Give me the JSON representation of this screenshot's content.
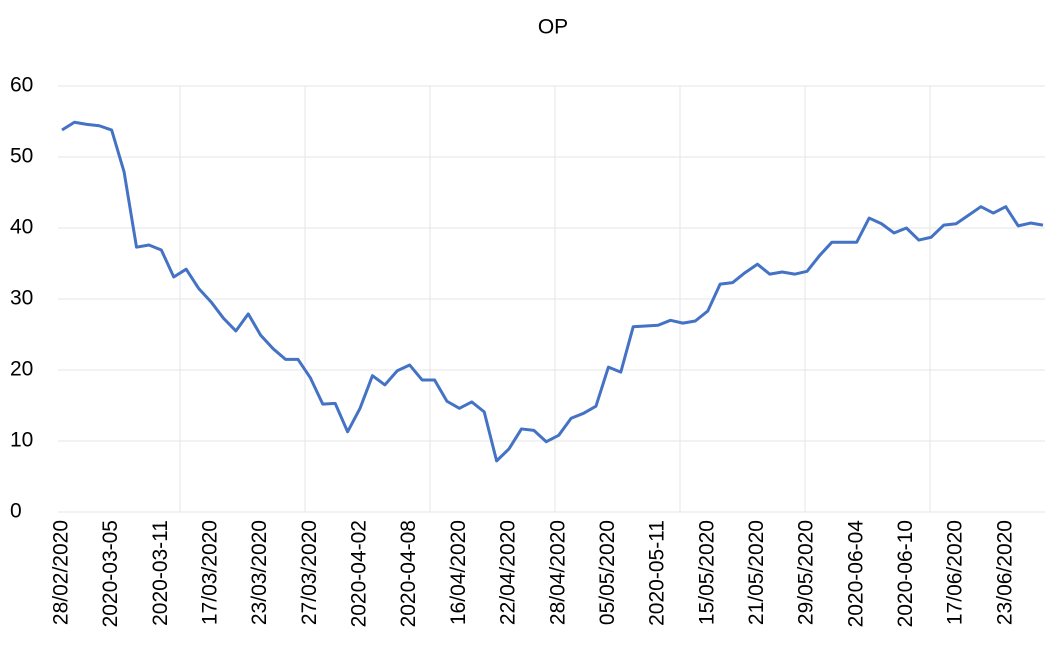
{
  "chart_data": {
    "type": "line",
    "title": "OP",
    "categories": [
      "28/02/2020",
      null,
      null,
      null,
      "2020-03-05",
      null,
      null,
      null,
      "2020-03-11",
      null,
      null,
      null,
      "17/03/2020",
      null,
      null,
      null,
      "23/03/2020",
      null,
      null,
      null,
      "27/03/2020",
      null,
      null,
      null,
      "2020-04-02",
      null,
      null,
      null,
      "2020-04-08",
      null,
      null,
      null,
      "16/04/2020",
      null,
      null,
      null,
      "22/04/2020",
      null,
      null,
      null,
      "28/04/2020",
      null,
      null,
      null,
      "05/05/2020",
      null,
      null,
      null,
      "2020-05-11",
      null,
      null,
      null,
      "15/05/2020",
      null,
      null,
      null,
      "21/05/2020",
      null,
      null,
      null,
      "29/05/2020",
      null,
      null,
      null,
      "2020-06-04",
      null,
      null,
      null,
      "2020-06-10",
      null,
      null,
      null,
      "17/06/2020",
      null,
      null,
      null,
      "23/06/2020",
      null,
      null,
      null
    ],
    "series": [
      {
        "name": "OP",
        "color": "#4472c4",
        "values": [
          53.8,
          54.9,
          54.6,
          54.4,
          53.8,
          47.9,
          37.3,
          37.6,
          36.9,
          33.1,
          34.2,
          31.5,
          29.6,
          27.3,
          25.5,
          27.9,
          24.9,
          23.0,
          21.5,
          21.5,
          18.9,
          15.2,
          15.3,
          11.3,
          14.6,
          19.2,
          17.9,
          19.9,
          20.7,
          18.6,
          18.6,
          15.6,
          14.6,
          15.5,
          14.1,
          7.2,
          8.9,
          11.7,
          11.5,
          9.9,
          10.8,
          13.2,
          13.9,
          14.9,
          20.4,
          19.7,
          26.1,
          26.2,
          26.3,
          27.0,
          26.6,
          26.9,
          28.3,
          32.1,
          32.3,
          33.7,
          34.9,
          33.5,
          33.8,
          33.5,
          33.9,
          36.1,
          38.0,
          38.0,
          38.0,
          41.4,
          40.6,
          39.3,
          40.0,
          38.3,
          38.7,
          40.4,
          40.6,
          41.8,
          43.0,
          42.1,
          43.0,
          40.3,
          40.7,
          40.4
        ]
      }
    ],
    "ylim": [
      0,
      60
    ],
    "yticks": [
      0,
      10,
      20,
      30,
      40,
      50,
      60
    ],
    "grid": true
  }
}
